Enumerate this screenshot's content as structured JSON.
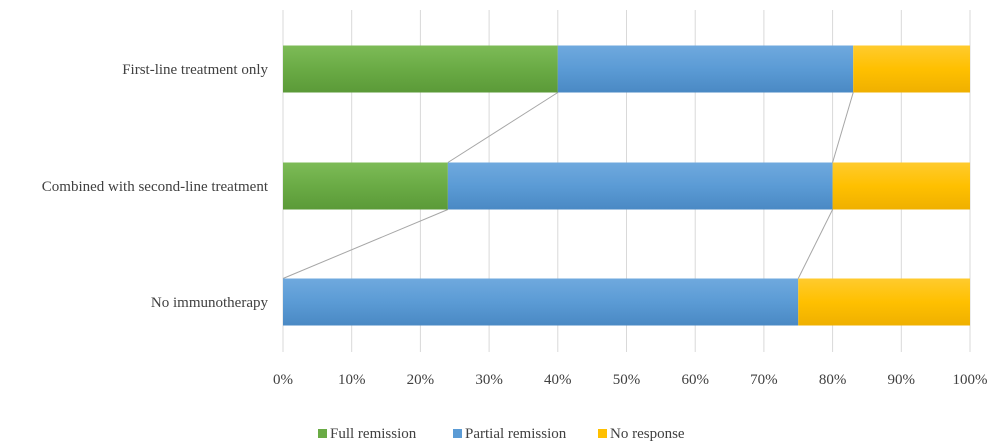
{
  "chart_data": {
    "type": "bar",
    "orientation": "horizontal",
    "stacked": true,
    "normalized": true,
    "categories": [
      "First-line treatment only",
      "Combined with second-line treatment",
      "No immunotherapy"
    ],
    "series": [
      {
        "name": "Full remission",
        "values": [
          40,
          24,
          0
        ],
        "color": "#6aab45"
      },
      {
        "name": "Partial remission",
        "values": [
          43,
          56,
          75
        ],
        "color": "#5b9bd5"
      },
      {
        "name": "No response",
        "values": [
          17,
          20,
          25
        ],
        "color": "#ffc000"
      }
    ],
    "xlim": [
      0,
      100
    ],
    "x_ticks": [
      "0%",
      "10%",
      "20%",
      "30%",
      "40%",
      "50%",
      "60%",
      "70%",
      "80%",
      "90%",
      "100%"
    ],
    "series_lines": true,
    "grid": "vertical",
    "legend_position": "bottom"
  }
}
